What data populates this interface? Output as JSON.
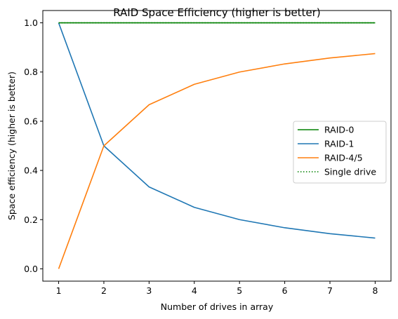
{
  "chart_data": {
    "type": "line",
    "title": "RAID Space Efficiency (higher is better)",
    "xlabel": "Number of drives in array",
    "ylabel": "Space efficiency (higher is better)",
    "x": [
      1,
      2,
      3,
      4,
      5,
      6,
      7,
      8
    ],
    "xlim": [
      0.65,
      8.35
    ],
    "ylim": [
      -0.05,
      1.05
    ],
    "xticks": [
      "1",
      "2",
      "3",
      "4",
      "5",
      "6",
      "7",
      "8"
    ],
    "yticks": [
      "0.0",
      "0.2",
      "0.4",
      "0.6",
      "0.8",
      "1.0"
    ],
    "grid": false,
    "legend_position": "center-right",
    "series": [
      {
        "name": "RAID-0",
        "color": "#008000",
        "style": "solid",
        "values": [
          1,
          1,
          1,
          1,
          1,
          1,
          1,
          1
        ]
      },
      {
        "name": "RAID-1",
        "color": "#1f77b4",
        "style": "solid",
        "values": [
          1.0,
          0.5,
          0.333,
          0.25,
          0.2,
          0.167,
          0.143,
          0.125
        ]
      },
      {
        "name": "RAID-4/5",
        "color": "#ff7f0e",
        "style": "solid",
        "values": [
          0.0,
          0.5,
          0.667,
          0.75,
          0.8,
          0.833,
          0.857,
          0.875
        ]
      },
      {
        "name": "Single drive",
        "color": "#008000",
        "style": "dotted",
        "values": [
          1,
          1,
          1,
          1,
          1,
          1,
          1,
          1
        ]
      }
    ]
  }
}
